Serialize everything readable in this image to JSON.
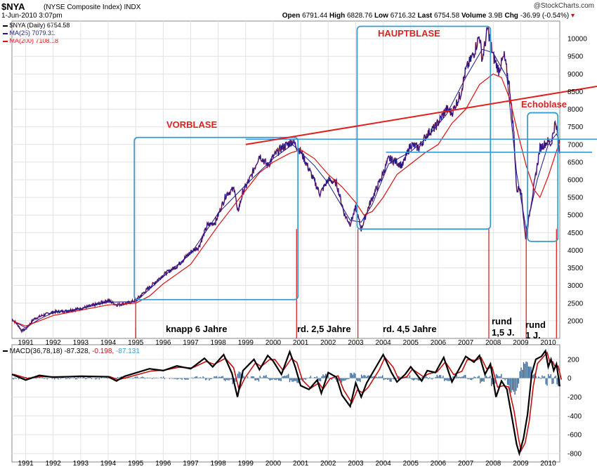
{
  "header": {
    "symbol": "$NYA",
    "name": "(NYSE Composite Index)",
    "exchange": "INDX",
    "date": "1-Jun-2010 3:07pm",
    "brand": "@StockCharts.com",
    "open_label": "Open",
    "open": "6791.44",
    "high_label": "High",
    "high": "6828.76",
    "low_label": "Low",
    "low": "6716.32",
    "last_label": "Last",
    "last": "6754.58",
    "volume_label": "Volume",
    "volume": "3.9B",
    "chg_label": "Chg",
    "chg": "-36.99 (-0.54%)"
  },
  "legend": {
    "price": "$NYA (Daily) 6754.58",
    "ma25": "MA(25) 7079.31",
    "ma200": "MA(200) 7108.18",
    "macd_prefix": "MACD(36,78,18)",
    "macd_val": "-87.328,",
    "macd_hist": "-0.198,",
    "macd_signal": "-87.131"
  },
  "colors": {
    "price": "#1a1a8c",
    "price_alt": "#b0103c",
    "ma25": "#1a1a8c",
    "ma200": "#dd1111",
    "annot_red": "#e02020",
    "annot_blue": "#3a9ad0",
    "macd": "#000000",
    "macd_signal": "#c01010",
    "macd_hist": "#3a6a9a",
    "grid": "#e2e2e2"
  },
  "chart_data": [
    {
      "type": "line",
      "title": "$NYA (NYSE Composite Index) INDX",
      "x_start": 1990.5,
      "x_end": 2010.42,
      "xlabel": "",
      "ylabel": "",
      "ylim": [
        1500,
        10500
      ],
      "y_ticks": [
        2000,
        2500,
        3000,
        3500,
        4000,
        4500,
        5000,
        5500,
        6000,
        6500,
        7000,
        7500,
        8000,
        8500,
        9000,
        9500,
        10000
      ],
      "x_ticks": [
        "1991",
        "1992",
        "1993",
        "1994",
        "1995",
        "1996",
        "1997",
        "1998",
        "1999",
        "2000",
        "2001",
        "2002",
        "2003",
        "2004",
        "2005",
        "2006",
        "2007",
        "2008",
        "2009",
        "2010"
      ],
      "series": [
        {
          "name": "$NYA (Daily)",
          "points": [
            [
              1990.5,
              2050
            ],
            [
              1990.7,
              1900
            ],
            [
              1990.85,
              1720
            ],
            [
              1991.0,
              1760
            ],
            [
              1991.3,
              2050
            ],
            [
              1991.6,
              2150
            ],
            [
              1992.0,
              2250
            ],
            [
              1992.5,
              2280
            ],
            [
              1993.0,
              2350
            ],
            [
              1993.5,
              2450
            ],
            [
              1994.0,
              2580
            ],
            [
              1994.3,
              2450
            ],
            [
              1994.7,
              2500
            ],
            [
              1995.0,
              2580
            ],
            [
              1995.5,
              2950
            ],
            [
              1996.0,
              3300
            ],
            [
              1996.5,
              3550
            ],
            [
              1997.0,
              3950
            ],
            [
              1997.3,
              4100
            ],
            [
              1997.6,
              4700
            ],
            [
              1997.9,
              4800
            ],
            [
              1998.3,
              5600
            ],
            [
              1998.6,
              5750
            ],
            [
              1998.7,
              5050
            ],
            [
              1998.9,
              5650
            ],
            [
              1999.2,
              6100
            ],
            [
              1999.5,
              6700
            ],
            [
              1999.8,
              6400
            ],
            [
              2000.0,
              6650
            ],
            [
              2000.3,
              6900
            ],
            [
              2000.7,
              7100
            ],
            [
              2001.0,
              6800
            ],
            [
              2001.3,
              6300
            ],
            [
              2001.7,
              5600
            ],
            [
              2002.0,
              6000
            ],
            [
              2002.3,
              5900
            ],
            [
              2002.6,
              5000
            ],
            [
              2002.8,
              4750
            ],
            [
              2003.0,
              5200
            ],
            [
              2003.2,
              4600
            ],
            [
              2003.5,
              5300
            ],
            [
              2003.9,
              6000
            ],
            [
              2004.2,
              6600
            ],
            [
              2004.5,
              6500
            ],
            [
              2004.7,
              6400
            ],
            [
              2005.0,
              7000
            ],
            [
              2005.3,
              6900
            ],
            [
              2005.6,
              7300
            ],
            [
              2005.9,
              7500
            ],
            [
              2006.3,
              8000
            ],
            [
              2006.5,
              7900
            ],
            [
              2006.8,
              8400
            ],
            [
              2007.0,
              9100
            ],
            [
              2007.3,
              9600
            ],
            [
              2007.5,
              10100
            ],
            [
              2007.6,
              9400
            ],
            [
              2007.8,
              10300
            ],
            [
              2008.0,
              9500
            ],
            [
              2008.2,
              9100
            ],
            [
              2008.4,
              9500
            ],
            [
              2008.6,
              8600
            ],
            [
              2008.75,
              7300
            ],
            [
              2008.85,
              5700
            ],
            [
              2009.0,
              5800
            ],
            [
              2009.18,
              4300
            ],
            [
              2009.35,
              5200
            ],
            [
              2009.5,
              5900
            ],
            [
              2009.7,
              6900
            ],
            [
              2009.85,
              7000
            ],
            [
              2010.0,
              7100
            ],
            [
              2010.1,
              7000
            ],
            [
              2010.25,
              7600
            ],
            [
              2010.35,
              7300
            ],
            [
              2010.42,
              6750
            ]
          ]
        },
        {
          "name": "MA(200)",
          "points": [
            [
              1990.5,
              2000
            ],
            [
              1991.0,
              1850
            ],
            [
              1991.5,
              2000
            ],
            [
              1992.0,
              2150
            ],
            [
              1993.0,
              2300
            ],
            [
              1994.0,
              2450
            ],
            [
              1995.0,
              2500
            ],
            [
              1995.5,
              2700
            ],
            [
              1996.0,
              3050
            ],
            [
              1997.0,
              3600
            ],
            [
              1998.0,
              4700
            ],
            [
              1999.0,
              5700
            ],
            [
              1999.5,
              6200
            ],
            [
              2000.0,
              6500
            ],
            [
              2000.6,
              6750
            ],
            [
              2001.0,
              6850
            ],
            [
              2001.5,
              6600
            ],
            [
              2002.0,
              6150
            ],
            [
              2002.5,
              5800
            ],
            [
              2003.0,
              5350
            ],
            [
              2003.3,
              5000
            ],
            [
              2003.6,
              5100
            ],
            [
              2004.0,
              5500
            ],
            [
              2004.5,
              6150
            ],
            [
              2005.0,
              6450
            ],
            [
              2005.5,
              6750
            ],
            [
              2006.0,
              7000
            ],
            [
              2006.5,
              7600
            ],
            [
              2007.0,
              8000
            ],
            [
              2007.5,
              8700
            ],
            [
              2008.0,
              9000
            ],
            [
              2008.3,
              8900
            ],
            [
              2008.6,
              8300
            ],
            [
              2008.9,
              7300
            ],
            [
              2009.2,
              6400
            ],
            [
              2009.5,
              5700
            ],
            [
              2009.7,
              5500
            ],
            [
              2010.0,
              6100
            ],
            [
              2010.42,
              7100
            ]
          ]
        },
        {
          "name": "MA(25)",
          "points": [
            [
              1990.5,
              2020
            ],
            [
              1991.0,
              1800
            ],
            [
              1991.5,
              2050
            ],
            [
              1992.0,
              2230
            ],
            [
              1993.0,
              2340
            ],
            [
              1994.0,
              2530
            ],
            [
              1995.0,
              2540
            ],
            [
              1996.0,
              3250
            ],
            [
              1997.0,
              3900
            ],
            [
              1998.0,
              5050
            ],
            [
              1999.0,
              5850
            ],
            [
              2000.0,
              6600
            ],
            [
              2000.7,
              7000
            ],
            [
              2001.5,
              6400
            ],
            [
              2002.0,
              5900
            ],
            [
              2002.8,
              4850
            ],
            [
              2003.2,
              4800
            ],
            [
              2003.6,
              5300
            ],
            [
              2004.2,
              6450
            ],
            [
              2005.0,
              6800
            ],
            [
              2005.6,
              7200
            ],
            [
              2006.3,
              7850
            ],
            [
              2007.0,
              8900
            ],
            [
              2007.6,
              9700
            ],
            [
              2008.0,
              9600
            ],
            [
              2008.5,
              8900
            ],
            [
              2008.85,
              6200
            ],
            [
              2009.2,
              4600
            ],
            [
              2009.6,
              6000
            ],
            [
              2010.0,
              7000
            ],
            [
              2010.3,
              7300
            ],
            [
              2010.42,
              7080
            ]
          ]
        }
      ]
    },
    {
      "type": "line",
      "title": "MACD(36,78,18)",
      "ylim": [
        -830,
        310
      ],
      "y_ticks": [
        200,
        0,
        -200,
        -400,
        -600,
        -800
      ],
      "series": [
        {
          "name": "MACD",
          "points": [
            [
              1990.5,
              40
            ],
            [
              1991.0,
              -20
            ],
            [
              1991.5,
              30
            ],
            [
              1992.0,
              10
            ],
            [
              1993.0,
              20
            ],
            [
              1994.0,
              15
            ],
            [
              1994.3,
              -30
            ],
            [
              1994.6,
              20
            ],
            [
              1995.5,
              100
            ],
            [
              1996.0,
              80
            ],
            [
              1996.5,
              130
            ],
            [
              1997.0,
              100
            ],
            [
              1997.5,
              210
            ],
            [
              1997.8,
              120
            ],
            [
              1998.2,
              250
            ],
            [
              1998.5,
              50
            ],
            [
              1998.7,
              -200
            ],
            [
              1998.9,
              80
            ],
            [
              1999.3,
              200
            ],
            [
              1999.5,
              90
            ],
            [
              1999.8,
              240
            ],
            [
              2000.0,
              180
            ],
            [
              2000.3,
              40
            ],
            [
              2000.6,
              280
            ],
            [
              2000.8,
              120
            ],
            [
              2001.0,
              -80
            ],
            [
              2001.3,
              -120
            ],
            [
              2001.6,
              -20
            ],
            [
              2001.75,
              -160
            ],
            [
              2002.0,
              60
            ],
            [
              2002.3,
              10
            ],
            [
              2002.5,
              -180
            ],
            [
              2002.8,
              -300
            ],
            [
              2003.0,
              -50
            ],
            [
              2003.2,
              -200
            ],
            [
              2003.4,
              -50
            ],
            [
              2003.8,
              150
            ],
            [
              2004.0,
              250
            ],
            [
              2004.3,
              60
            ],
            [
              2004.5,
              -40
            ],
            [
              2004.8,
              40
            ],
            [
              2005.0,
              120
            ],
            [
              2005.4,
              -30
            ],
            [
              2005.6,
              80
            ],
            [
              2005.9,
              60
            ],
            [
              2006.2,
              220
            ],
            [
              2006.5,
              -40
            ],
            [
              2006.8,
              120
            ],
            [
              2007.0,
              230
            ],
            [
              2007.3,
              170
            ],
            [
              2007.5,
              240
            ],
            [
              2007.7,
              40
            ],
            [
              2007.9,
              150
            ],
            [
              2008.1,
              -200
            ],
            [
              2008.3,
              -30
            ],
            [
              2008.5,
              -120
            ],
            [
              2008.7,
              -450
            ],
            [
              2008.85,
              -700
            ],
            [
              2008.95,
              -800
            ],
            [
              2009.1,
              -640
            ],
            [
              2009.25,
              -380
            ],
            [
              2009.4,
              50
            ],
            [
              2009.55,
              200
            ],
            [
              2009.75,
              230
            ],
            [
              2009.9,
              290
            ],
            [
              2010.0,
              120
            ],
            [
              2010.1,
              200
            ],
            [
              2010.2,
              80
            ],
            [
              2010.3,
              150
            ],
            [
              2010.42,
              -87
            ]
          ]
        }
      ]
    }
  ],
  "annotations": {
    "vorblase": "VORBLASE",
    "hauptblase": "HAUPTBLASE",
    "echoblase": "Echoblase",
    "knapp_6": "knapp 6 Jahre",
    "rd_2_5": "rd. 2,5 Jahre",
    "rd_4_5": "rd. 4,5 Jahre",
    "rund_1_5_a": "rund",
    "rund_1_5_b": "1,5 J.",
    "rund_1_a": "rund",
    "rund_1_b": "1 J."
  }
}
